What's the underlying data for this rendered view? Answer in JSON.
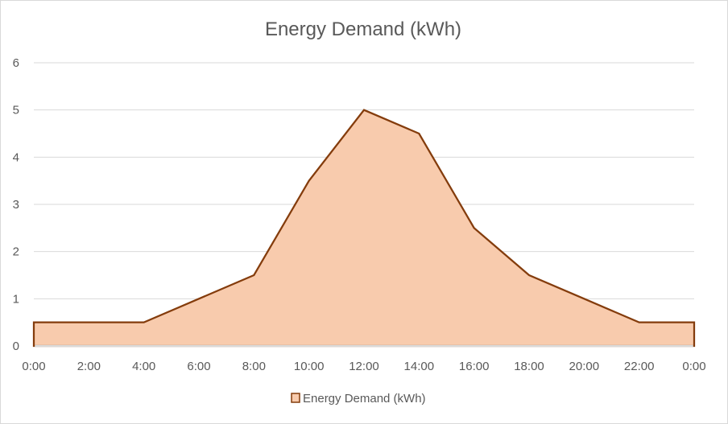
{
  "chart_data": {
    "type": "area",
    "title": "Energy Demand (kWh)",
    "xlabel": "",
    "ylabel": "",
    "categories": [
      "0:00",
      "2:00",
      "4:00",
      "6:00",
      "8:00",
      "10:00",
      "12:00",
      "14:00",
      "16:00",
      "18:00",
      "20:00",
      "22:00",
      "0:00"
    ],
    "series": [
      {
        "name": "Energy Demand (kWh)",
        "values": [
          0.5,
          0.5,
          0.5,
          1.0,
          1.5,
          3.5,
          5.0,
          4.5,
          2.5,
          1.5,
          1.0,
          0.5,
          0.5
        ]
      }
    ],
    "ylim": [
      0,
      6
    ],
    "yticks": [
      0,
      1,
      2,
      3,
      4,
      5,
      6
    ],
    "grid": true,
    "legend_position": "bottom",
    "colors": {
      "fill": "#f8cbad",
      "line": "#843c0c",
      "grid": "#d9d9d9",
      "text": "#595959"
    }
  }
}
